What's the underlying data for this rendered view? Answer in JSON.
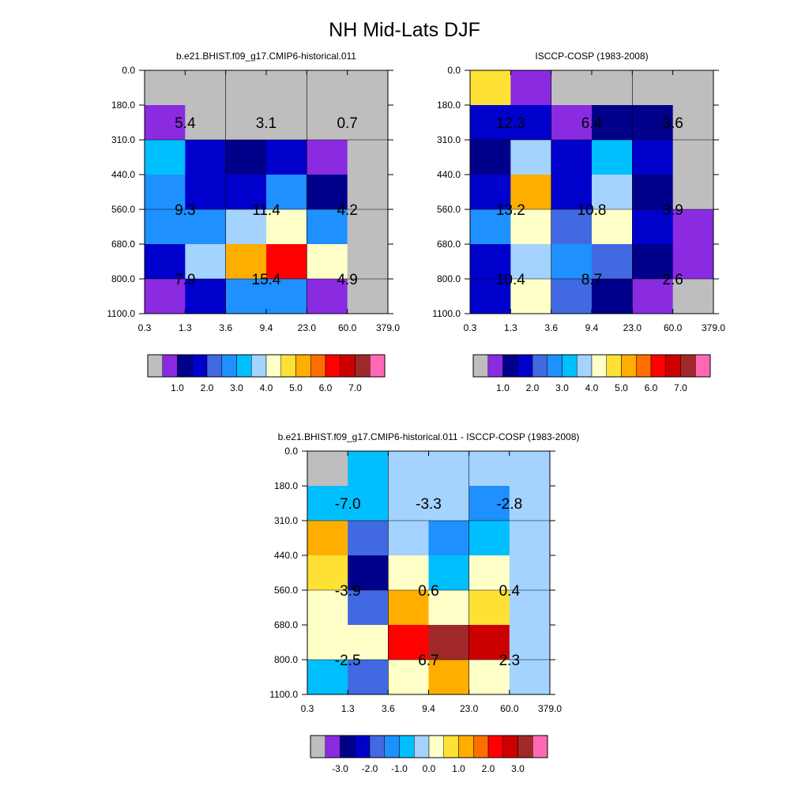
{
  "figure": {
    "title": "NH Mid-Lats DJF"
  },
  "colors": {
    "missing": "#bebebe",
    "grid": "#000000",
    "abs_palette": [
      "#bebebe",
      "#8a2be2",
      "#00008b",
      "#0000cd",
      "#4169e1",
      "#1e90ff",
      "#00bfff",
      "#a4d3ff",
      "#ffffc8",
      "#ffe135",
      "#ffae00",
      "#ff6f00",
      "#ff0000",
      "#cd0000",
      "#a02828",
      "#ff69b4"
    ],
    "diff_palette": [
      "#bebebe",
      "#8a2be2",
      "#00008b",
      "#0000cd",
      "#4169e1",
      "#1e90ff",
      "#00bfff",
      "#a4d3ff",
      "#ffffc8",
      "#ffe135",
      "#ffae00",
      "#ff6f00",
      "#ff0000",
      "#cd0000",
      "#a02828",
      "#ff69b4"
    ]
  },
  "chart_data": [
    {
      "type": "heatmap",
      "title": "b.e21.BHIST.f09_g17.CMIP6-historical.011",
      "x_ticks": [
        "0.3",
        "1.3",
        "3.6",
        "9.4",
        "23.0",
        "60.0",
        "379.0"
      ],
      "y_ticks": [
        "0.0",
        "180.0",
        "310.0",
        "440.0",
        "560.0",
        "680.0",
        "800.0",
        "1100.0"
      ],
      "grid": true,
      "cells": [
        [
          -1,
          -1,
          -1,
          -1,
          -1,
          -1
        ],
        [
          1.0,
          -1,
          -1,
          -1,
          -1,
          -1
        ],
        [
          6,
          3,
          2,
          3,
          1,
          -1
        ],
        [
          5,
          3,
          3,
          5,
          2,
          -1
        ],
        [
          5,
          5,
          7,
          8,
          5,
          -1
        ],
        [
          3,
          7,
          10,
          12,
          8,
          -1
        ],
        [
          1,
          3,
          5,
          5,
          1,
          -1
        ]
      ],
      "box_values": [
        [
          "5.4",
          "3.1",
          "0.7"
        ],
        [
          "9.3",
          "11.4",
          "4.2"
        ],
        [
          "7.9",
          "15.4",
          "4.9"
        ]
      ],
      "colorbar_labels": [
        "1.0",
        "2.0",
        "3.0",
        "4.0",
        "5.0",
        "6.0",
        "7.0"
      ]
    },
    {
      "type": "heatmap",
      "title": "ISCCP-COSP (1983-2008)",
      "x_ticks": [
        "0.3",
        "1.3",
        "3.6",
        "9.4",
        "23.0",
        "60.0",
        "379.0"
      ],
      "y_ticks": [
        "0.0",
        "180.0",
        "310.0",
        "440.0",
        "560.0",
        "680.0",
        "800.0",
        "1100.0"
      ],
      "grid": true,
      "cells": [
        [
          9,
          1,
          -1,
          -1,
          -1,
          -1
        ],
        [
          3,
          3,
          1,
          2,
          2,
          -1
        ],
        [
          2,
          7,
          3,
          6,
          3,
          -1
        ],
        [
          3,
          10,
          3,
          7,
          2,
          -1
        ],
        [
          5,
          8,
          4,
          8,
          3,
          1
        ],
        [
          3,
          7,
          5,
          4,
          2,
          1
        ],
        [
          3,
          8,
          4,
          2,
          1,
          -1
        ]
      ],
      "box_values": [
        [
          "12.3",
          "6.4",
          "3.6"
        ],
        [
          "13.2",
          "10.8",
          "3.9"
        ],
        [
          "10.4",
          "8.7",
          "2.6"
        ]
      ],
      "colorbar_labels": [
        "1.0",
        "2.0",
        "3.0",
        "4.0",
        "5.0",
        "6.0",
        "7.0"
      ]
    },
    {
      "type": "heatmap",
      "title": "b.e21.BHIST.f09_g17.CMIP6-historical.011 - ISCCP-COSP (1983-2008)",
      "x_ticks": [
        "0.3",
        "1.3",
        "3.6",
        "9.4",
        "23.0",
        "60.0",
        "379.0"
      ],
      "y_ticks": [
        "0.0",
        "180.0",
        "310.0",
        "440.0",
        "560.0",
        "680.0",
        "800.0",
        "1100.0"
      ],
      "grid": true,
      "cells": [
        [
          -1,
          6,
          7,
          7,
          7,
          7
        ],
        [
          6,
          6,
          7,
          7,
          5,
          7
        ],
        [
          10,
          4,
          7,
          5,
          6,
          7
        ],
        [
          9,
          2,
          8,
          6,
          8,
          7
        ],
        [
          8,
          4,
          10,
          8,
          9,
          7
        ],
        [
          8,
          8,
          12,
          14,
          13,
          7
        ],
        [
          6,
          4,
          8,
          10,
          8,
          7
        ]
      ],
      "box_values": [
        [
          "-7.0",
          "-3.3",
          "-2.8"
        ],
        [
          "-3.9",
          "0.6",
          "0.4"
        ],
        [
          "-2.5",
          "6.7",
          "2.3"
        ]
      ],
      "colorbar_labels": [
        "-3.0",
        "-2.0",
        "-1.0",
        "0.0",
        "1.0",
        "2.0",
        "3.0"
      ]
    }
  ]
}
